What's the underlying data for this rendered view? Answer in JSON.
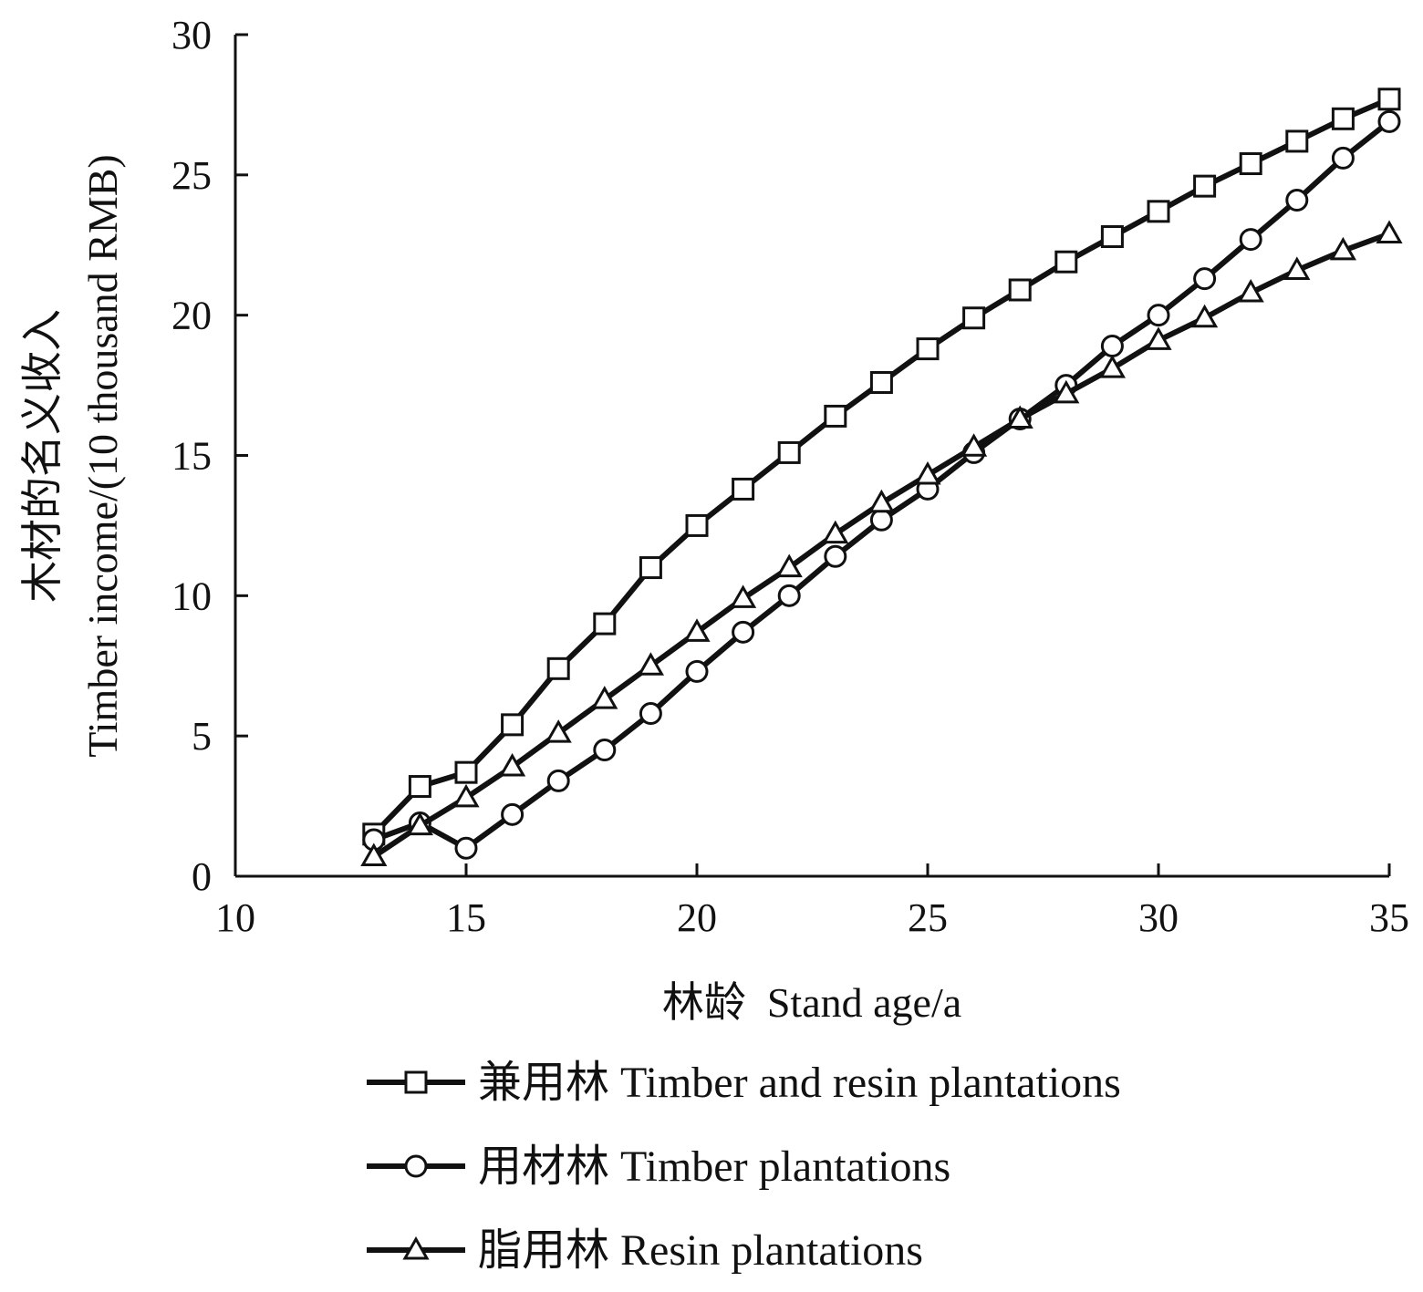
{
  "chart_data": {
    "type": "line",
    "xlabel": "林龄  Stand age/a",
    "ylabel": "木材的名义收入 Timber income/(10 thousand RMB)",
    "ylabel_lines": [
      "木材的名义收入",
      "Timber income/(10 thousand RMB)"
    ],
    "xlim": [
      10,
      35
    ],
    "ylim": [
      0,
      30
    ],
    "xticks": [
      10,
      15,
      20,
      25,
      30,
      35
    ],
    "yticks": [
      0,
      5,
      10,
      15,
      20,
      25,
      30
    ],
    "grid": false,
    "legend_position": "bottom",
    "x": [
      13,
      14,
      15,
      16,
      17,
      18,
      19,
      20,
      21,
      22,
      23,
      24,
      25,
      26,
      27,
      28,
      29,
      30,
      31,
      32,
      33,
      34,
      35
    ],
    "series": [
      {
        "name": "兼用林  Timber and resin plantations",
        "marker": "square",
        "color": "#111111",
        "values": [
          1.5,
          3.2,
          3.7,
          5.4,
          7.4,
          9.0,
          11.0,
          12.5,
          13.8,
          15.1,
          16.4,
          17.6,
          18.8,
          19.9,
          20.9,
          21.9,
          22.8,
          23.7,
          24.6,
          25.4,
          26.2,
          27.0,
          27.7
        ]
      },
      {
        "name": "用材林  Timber plantations",
        "marker": "circle",
        "color": "#111111",
        "values": [
          1.3,
          1.9,
          1.0,
          2.2,
          3.4,
          4.5,
          5.8,
          7.3,
          8.7,
          10.0,
          11.4,
          12.7,
          13.8,
          15.1,
          16.3,
          17.5,
          18.9,
          20.0,
          21.3,
          22.7,
          24.1,
          25.6,
          26.9
        ]
      },
      {
        "name": "脂用林  Resin plantations",
        "marker": "triangle",
        "color": "#111111",
        "values": [
          0.7,
          1.8,
          2.8,
          3.9,
          5.1,
          6.3,
          7.5,
          8.7,
          9.9,
          11.0,
          12.2,
          13.3,
          14.3,
          15.3,
          16.3,
          17.2,
          18.1,
          19.1,
          19.9,
          20.8,
          21.6,
          22.3,
          22.9
        ]
      }
    ]
  }
}
